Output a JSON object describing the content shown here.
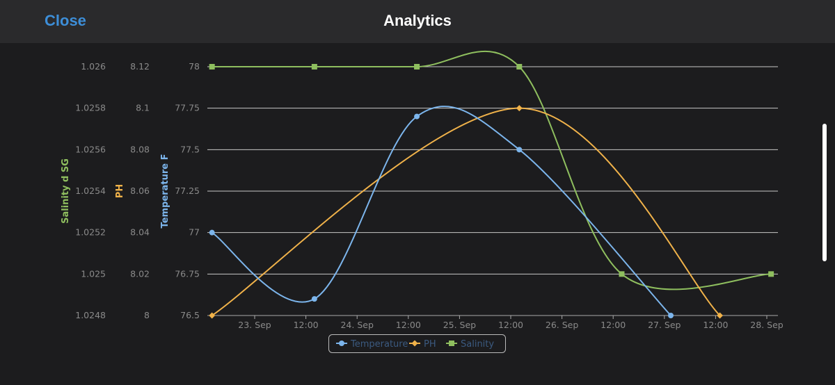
{
  "header": {
    "close_label": "Close",
    "title": "Analytics"
  },
  "colors": {
    "temperature": "#7cb5ec",
    "ph": "#f0b24a",
    "salinity": "#8fbf5f",
    "grid": "#c8c8c8"
  },
  "chart_data": {
    "type": "line",
    "title": "",
    "x_type": "datetime (hours from 23 Sep 00:00)",
    "x_range": [
      -11,
      124
    ],
    "x_ticks": [
      {
        "h": 0,
        "label": "23. Sep"
      },
      {
        "h": 12,
        "label": "12:00"
      },
      {
        "h": 24,
        "label": "24. Sep"
      },
      {
        "h": 36,
        "label": "12:00"
      },
      {
        "h": 48,
        "label": "25. Sep"
      },
      {
        "h": 60,
        "label": "12:00"
      },
      {
        "h": 72,
        "label": "26. Sep"
      },
      {
        "h": 84,
        "label": "12:00"
      },
      {
        "h": 96,
        "label": "27. Sep"
      },
      {
        "h": 108,
        "label": "12:00"
      },
      {
        "h": 120,
        "label": "28. Sep"
      }
    ],
    "y_axes": [
      {
        "id": "temp",
        "title": "Temperature F",
        "range": [
          76.5,
          78
        ],
        "ticks": [
          "76.5",
          "76.75",
          "77",
          "77.25",
          "77.5",
          "77.75",
          "78"
        ]
      },
      {
        "id": "ph",
        "title": "PH",
        "range": [
          8,
          8.12
        ],
        "ticks": [
          "8",
          "8.02",
          "8.04",
          "8.06",
          "8.08",
          "8.1",
          "8.12"
        ]
      },
      {
        "id": "sal",
        "title": "Salinity d SG",
        "range": [
          1.0248,
          1.026
        ],
        "ticks": [
          "1.0248",
          "1.025",
          "1.0252",
          "1.0254",
          "1.0256",
          "1.0258",
          "1.026"
        ]
      }
    ],
    "series": [
      {
        "name": "Temperature",
        "axis": "temp",
        "marker": "circle",
        "points": [
          [
            -10,
            77
          ],
          [
            14,
            76.6
          ],
          [
            38,
            77.7
          ],
          [
            62,
            77.5
          ],
          [
            97.5,
            76.5
          ]
        ]
      },
      {
        "name": "PH",
        "axis": "ph",
        "marker": "diamond",
        "points": [
          [
            -10,
            8.0
          ],
          [
            62,
            8.1
          ],
          [
            109,
            8.0
          ]
        ]
      },
      {
        "name": "Salinity",
        "axis": "sal",
        "marker": "square",
        "points": [
          [
            -10,
            1.026
          ],
          [
            14,
            1.026
          ],
          [
            38,
            1.026
          ],
          [
            62,
            1.026
          ],
          [
            86,
            1.025
          ],
          [
            121,
            1.025
          ]
        ]
      }
    ],
    "legend": {
      "position": "bottom-center",
      "items": [
        "Temperature",
        "PH",
        "Salinity"
      ]
    }
  }
}
